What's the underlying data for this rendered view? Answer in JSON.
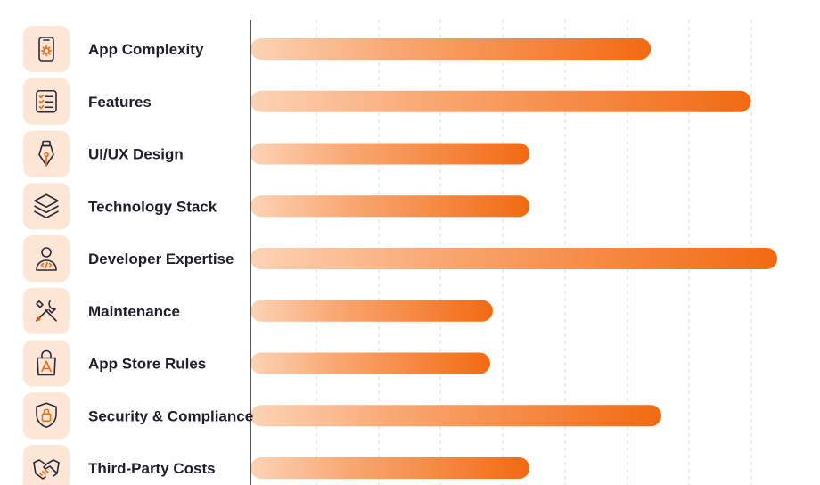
{
  "chart_data": {
    "type": "bar",
    "orientation": "horizontal",
    "categories": [
      "App Complexity",
      "Features",
      "UI/UX Design",
      "Technology Stack",
      "Developer Expertise",
      "Maintenance",
      "App Store Rules",
      "Security & Compliance",
      "Third-Party Costs"
    ],
    "icons": [
      "phone-gear-icon",
      "checklist-icon",
      "pen-nib-icon",
      "layers-stack-icon",
      "developer-code-icon",
      "wrench-screwdriver-icon",
      "shopping-bag-app-icon",
      "shield-lock-icon",
      "handshake-icon"
    ],
    "values": [
      76,
      95,
      53,
      53,
      100,
      46,
      45.5,
      78,
      53
    ],
    "xlim": [
      0,
      100
    ],
    "grid": true,
    "title": "",
    "xlabel": "",
    "ylabel": "",
    "colors": {
      "bar_start": "#fcd3b6",
      "bar_end": "#f26a12",
      "icon_bg": "#fde6d6",
      "axis": "#222222",
      "grid": "#d9d9d9",
      "label": "#1f1f2b"
    }
  }
}
